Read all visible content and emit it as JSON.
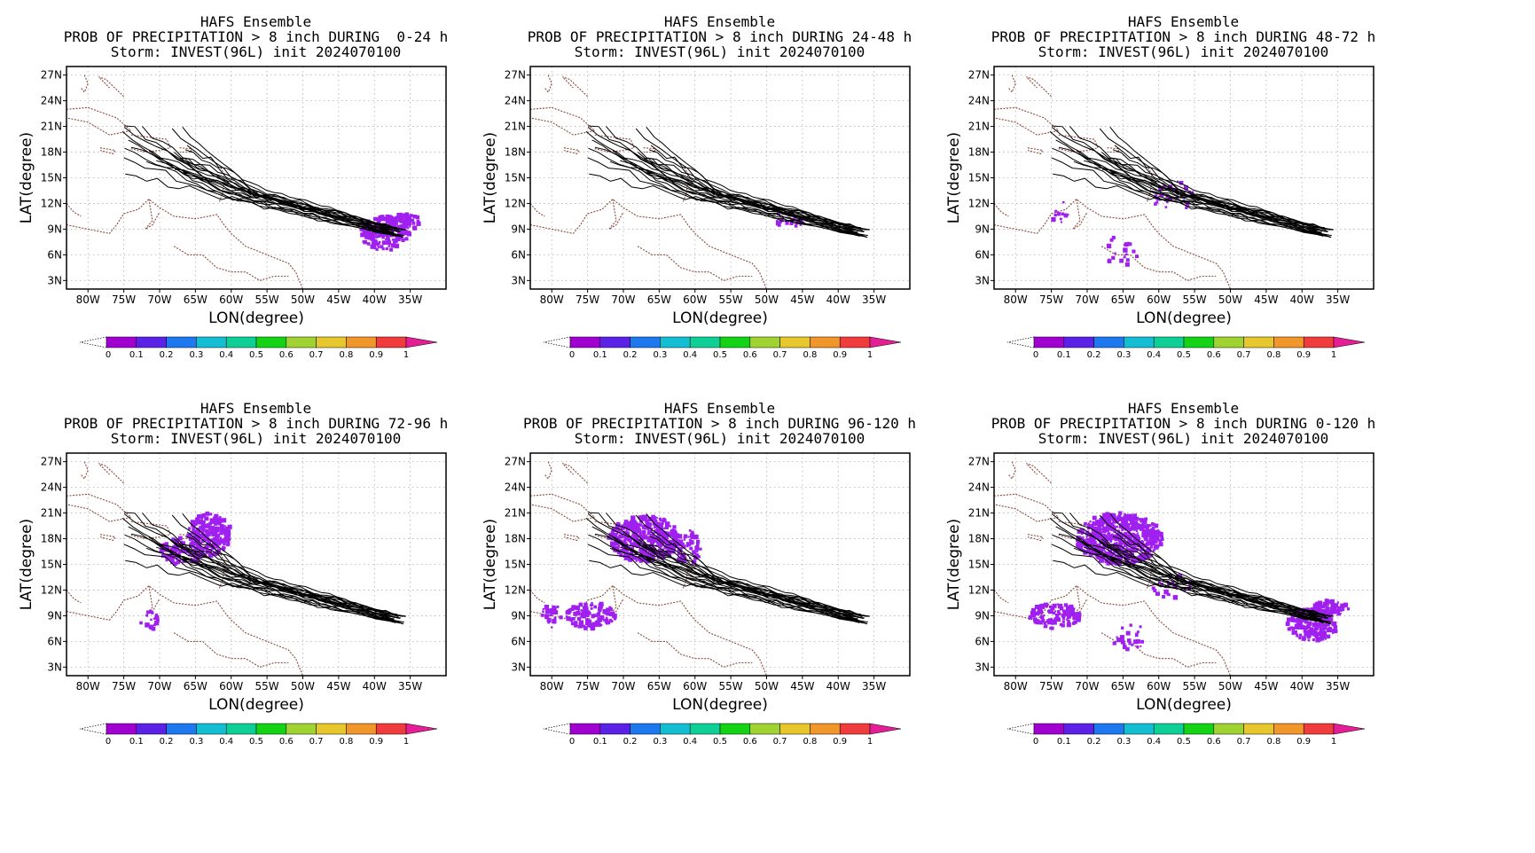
{
  "chart_data": [
    {
      "type": "heatmap",
      "title": "HAFS Ensemble",
      "subtitle": "PROB OF PRECIPITATION > 8 inch DURING  0-24 h",
      "storm": "Storm: INVEST(96L) init 2024070100",
      "xlabel": "LON(degree)",
      "ylabel": "LAT(degree)",
      "xticks": [
        "80W",
        "75W",
        "70W",
        "65W",
        "60W",
        "55W",
        "50W",
        "45W",
        "40W",
        "35W"
      ],
      "yticks": [
        "27N",
        "24N",
        "21N",
        "18N",
        "15N",
        "12N",
        "9N",
        "6N",
        "3N"
      ],
      "xlim": [
        -83,
        -30
      ],
      "ylim": [
        2,
        28
      ],
      "colorbar_ticks": [
        "0",
        "0.1",
        "0.2",
        "0.3",
        "0.4",
        "0.5",
        "0.6",
        "0.7",
        "0.8",
        "0.9",
        "1"
      ],
      "precip_regions": [
        {
          "lon": [
            -42,
            -34
          ],
          "lat": [
            6,
            10.5
          ],
          "prob": 0.05
        }
      ]
    },
    {
      "type": "heatmap",
      "title": "HAFS Ensemble",
      "subtitle": "PROB OF PRECIPITATION > 8 inch DURING 24-48 h",
      "storm": "Storm: INVEST(96L) init 2024070100",
      "xlabel": "LON(degree)",
      "ylabel": "LAT(degree)",
      "xticks": [
        "80W",
        "75W",
        "70W",
        "65W",
        "60W",
        "55W",
        "50W",
        "45W",
        "40W",
        "35W"
      ],
      "yticks": [
        "27N",
        "24N",
        "21N",
        "18N",
        "15N",
        "12N",
        "9N",
        "6N",
        "3N"
      ],
      "xlim": [
        -83,
        -30
      ],
      "ylim": [
        2,
        28
      ],
      "colorbar_ticks": [
        "0",
        "0.1",
        "0.2",
        "0.3",
        "0.4",
        "0.5",
        "0.6",
        "0.7",
        "0.8",
        "0.9",
        "1"
      ],
      "precip_regions": [
        {
          "lon": [
            -50,
            -45
          ],
          "lat": [
            9.5,
            11.5
          ],
          "prob": 0.05
        }
      ]
    },
    {
      "type": "heatmap",
      "title": "HAFS Ensemble",
      "subtitle": "PROB OF PRECIPITATION > 8 inch DURING 48-72 h",
      "storm": "Storm: INVEST(96L) init 2024070100",
      "xlabel": "LON(degree)",
      "ylabel": "LAT(degree)",
      "xticks": [
        "80W",
        "75W",
        "70W",
        "65W",
        "60W",
        "55W",
        "50W",
        "45W",
        "40W",
        "35W"
      ],
      "yticks": [
        "27N",
        "24N",
        "21N",
        "18N",
        "15N",
        "12N",
        "9N",
        "6N",
        "3N"
      ],
      "xlim": [
        -83,
        -30
      ],
      "ylim": [
        2,
        28
      ],
      "colorbar_ticks": [
        "0",
        "0.1",
        "0.2",
        "0.3",
        "0.4",
        "0.5",
        "0.6",
        "0.7",
        "0.8",
        "0.9",
        "1"
      ],
      "precip_regions": [
        {
          "lon": [
            -62,
            -55
          ],
          "lat": [
            11,
            16
          ],
          "prob": 0.05
        },
        {
          "lon": [
            -70,
            -60
          ],
          "lat": [
            5,
            8
          ],
          "prob": 0.05
        }
      ]
    },
    {
      "type": "heatmap",
      "title": "HAFS Ensemble",
      "subtitle": "PROB OF PRECIPITATION > 8 inch DURING 72-96 h",
      "storm": "Storm: INVEST(96L) init 2024070100",
      "xlabel": "LON(degree)",
      "ylabel": "LAT(degree)",
      "xticks": [
        "80W",
        "75W",
        "70W",
        "65W",
        "60W",
        "55W",
        "50W",
        "45W",
        "40W",
        "35W"
      ],
      "yticks": [
        "27N",
        "24N",
        "21N",
        "18N",
        "15N",
        "12N",
        "9N",
        "6N",
        "3N"
      ],
      "xlim": [
        -83,
        -30
      ],
      "ylim": [
        2,
        28
      ],
      "colorbar_ticks": [
        "0",
        "0.1",
        "0.2",
        "0.3",
        "0.4",
        "0.5",
        "0.6",
        "0.7",
        "0.8",
        "0.9",
        "1"
      ],
      "precip_regions": [
        {
          "lon": [
            -67,
            -59
          ],
          "lat": [
            16,
            21
          ],
          "prob": 0.05
        },
        {
          "lon": [
            -70,
            -60
          ],
          "lat": [
            14,
            17
          ],
          "prob": 0.05
        }
      ]
    },
    {
      "type": "heatmap",
      "title": "HAFS Ensemble",
      "subtitle": "PROB OF PRECIPITATION > 8 inch DURING 96-120 h",
      "storm": "Storm: INVEST(96L) init 2024070100",
      "xlabel": "LON(degree)",
      "ylabel": "LAT(degree)",
      "xticks": [
        "80W",
        "75W",
        "70W",
        "65W",
        "60W",
        "55W",
        "50W",
        "45W",
        "40W",
        "35W"
      ],
      "yticks": [
        "27N",
        "24N",
        "21N",
        "18N",
        "15N",
        "12N",
        "9N",
        "6N",
        "3N"
      ],
      "xlim": [
        -83,
        -30
      ],
      "ylim": [
        2,
        28
      ],
      "colorbar_ticks": [
        "0",
        "0.1",
        "0.2",
        "0.3",
        "0.4",
        "0.5",
        "0.6",
        "0.7",
        "0.8",
        "0.9",
        "1"
      ],
      "precip_regions": [
        {
          "lon": [
            -72,
            -62
          ],
          "lat": [
            15,
            22
          ],
          "prob": 0.05
        },
        {
          "lon": [
            -78,
            -70
          ],
          "lat": [
            8,
            11
          ],
          "prob": 0.05
        }
      ]
    },
    {
      "type": "heatmap",
      "title": "HAFS Ensemble",
      "subtitle": "PROB OF PRECIPITATION > 8 inch DURING 0-120 h",
      "storm": "Storm: INVEST(96L) init 2024070100",
      "xlabel": "LON(degree)",
      "ylabel": "LAT(degree)",
      "xticks": [
        "80W",
        "75W",
        "70W",
        "65W",
        "60W",
        "55W",
        "50W",
        "45W",
        "40W",
        "35W"
      ],
      "yticks": [
        "27N",
        "24N",
        "21N",
        "18N",
        "15N",
        "12N",
        "9N",
        "6N",
        "3N"
      ],
      "xlim": [
        -83,
        -30
      ],
      "ylim": [
        2,
        28
      ],
      "colorbar_ticks": [
        "0",
        "0.1",
        "0.2",
        "0.3",
        "0.4",
        "0.5",
        "0.6",
        "0.7",
        "0.8",
        "0.9",
        "1"
      ],
      "precip_regions": [
        {
          "lon": [
            -72,
            -60
          ],
          "lat": [
            15,
            22
          ],
          "prob": 0.05
        },
        {
          "lon": [
            -78,
            -70
          ],
          "lat": [
            8,
            11
          ],
          "prob": 0.05
        },
        {
          "lon": [
            -42,
            -34
          ],
          "lat": [
            6,
            10.5
          ],
          "prob": 0.05
        }
      ]
    }
  ],
  "colors": {
    "colorbar": [
      "#a000d0",
      "#5a22e6",
      "#1e78f0",
      "#14bed2",
      "#0ecf96",
      "#14d214",
      "#a0d232",
      "#e6c82e",
      "#f0962a",
      "#f03c3c",
      "#e61e96"
    ],
    "precip": "#a020f0",
    "coast": "#8b4a3a",
    "grid": "#b0b0b0"
  }
}
